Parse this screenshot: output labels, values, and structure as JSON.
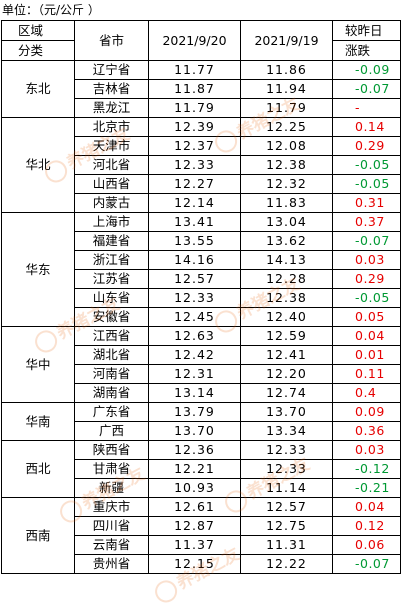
{
  "unit_label": "单位：（元/公斤 ）",
  "headers": {
    "region_top": "区域",
    "region_bottom": "分类",
    "province": "省市",
    "date1": "2021/9/20",
    "date2": "2021/9/19",
    "change_top": "较昨日",
    "change_bottom": "涨跌"
  },
  "regions": [
    {
      "name": "东北",
      "rows": [
        {
          "province": "辽宁省",
          "d1": "11.77",
          "d2": "11.86",
          "chg": "-0.09",
          "dir": "down"
        },
        {
          "province": "吉林省",
          "d1": "11.87",
          "d2": "11.94",
          "chg": "-0.07",
          "dir": "down"
        },
        {
          "province": "黑龙江",
          "d1": "11.79",
          "d2": "11.79",
          "chg": "-",
          "dir": "up"
        }
      ]
    },
    {
      "name": "华北",
      "rows": [
        {
          "province": "北京市",
          "d1": "12.39",
          "d2": "12.25",
          "chg": "0.14",
          "dir": "up"
        },
        {
          "province": "天津市",
          "d1": "12.37",
          "d2": "12.08",
          "chg": "0.29",
          "dir": "up"
        },
        {
          "province": "河北省",
          "d1": "12.33",
          "d2": "12.38",
          "chg": "-0.05",
          "dir": "down"
        },
        {
          "province": "山西省",
          "d1": "12.27",
          "d2": "12.32",
          "chg": "-0.05",
          "dir": "down"
        },
        {
          "province": "内蒙古",
          "d1": "12.14",
          "d2": "11.83",
          "chg": "0.31",
          "dir": "up"
        }
      ]
    },
    {
      "name": "华东",
      "rows": [
        {
          "province": "上海市",
          "d1": "13.41",
          "d2": "13.04",
          "chg": "0.37",
          "dir": "up"
        },
        {
          "province": "福建省",
          "d1": "13.55",
          "d2": "13.62",
          "chg": "-0.07",
          "dir": "down"
        },
        {
          "province": "浙江省",
          "d1": "14.16",
          "d2": "14.13",
          "chg": "0.03",
          "dir": "up"
        },
        {
          "province": "江苏省",
          "d1": "12.57",
          "d2": "12.28",
          "chg": "0.29",
          "dir": "up"
        },
        {
          "province": "山东省",
          "d1": "12.33",
          "d2": "12.38",
          "chg": "-0.05",
          "dir": "down"
        },
        {
          "province": "安徽省",
          "d1": "12.45",
          "d2": "12.40",
          "chg": "0.05",
          "dir": "up"
        }
      ]
    },
    {
      "name": "华中",
      "rows": [
        {
          "province": "江西省",
          "d1": "12.63",
          "d2": "12.59",
          "chg": "0.04",
          "dir": "up"
        },
        {
          "province": "湖北省",
          "d1": "12.42",
          "d2": "12.41",
          "chg": "0.01",
          "dir": "up"
        },
        {
          "province": "河南省",
          "d1": "12.31",
          "d2": "12.20",
          "chg": "0.11",
          "dir": "up"
        },
        {
          "province": "湖南省",
          "d1": "13.14",
          "d2": "12.74",
          "chg": "0.4",
          "dir": "up"
        }
      ]
    },
    {
      "name": "华南",
      "rows": [
        {
          "province": "广东省",
          "d1": "13.79",
          "d2": "13.70",
          "chg": "0.09",
          "dir": "up"
        },
        {
          "province": "广西",
          "d1": "13.70",
          "d2": "13.34",
          "chg": "0.36",
          "dir": "up"
        }
      ]
    },
    {
      "name": "西北",
      "rows": [
        {
          "province": "陕西省",
          "d1": "12.36",
          "d2": "12.33",
          "chg": "0.03",
          "dir": "up"
        },
        {
          "province": "甘肃省",
          "d1": "12.21",
          "d2": "12.33",
          "chg": "-0.12",
          "dir": "down"
        },
        {
          "province": "新疆",
          "d1": "10.93",
          "d2": "11.14",
          "chg": "-0.21",
          "dir": "down"
        }
      ]
    },
    {
      "name": "西南",
      "rows": [
        {
          "province": "重庆市",
          "d1": "12.61",
          "d2": "12.57",
          "chg": "0.04",
          "dir": "up"
        },
        {
          "province": "四川省",
          "d1": "12.87",
          "d2": "12.75",
          "chg": "0.12",
          "dir": "up"
        },
        {
          "province": "云南省",
          "d1": "11.37",
          "d2": "11.31",
          "chg": "0.06",
          "dir": "up"
        },
        {
          "province": "贵州省",
          "d1": "12.15",
          "d2": "12.22",
          "chg": "-0.07",
          "dir": "down"
        }
      ]
    }
  ],
  "watermark": "养猪之友",
  "colors": {
    "up": "#e60000",
    "down": "#009933",
    "watermark": "#e65c00"
  }
}
